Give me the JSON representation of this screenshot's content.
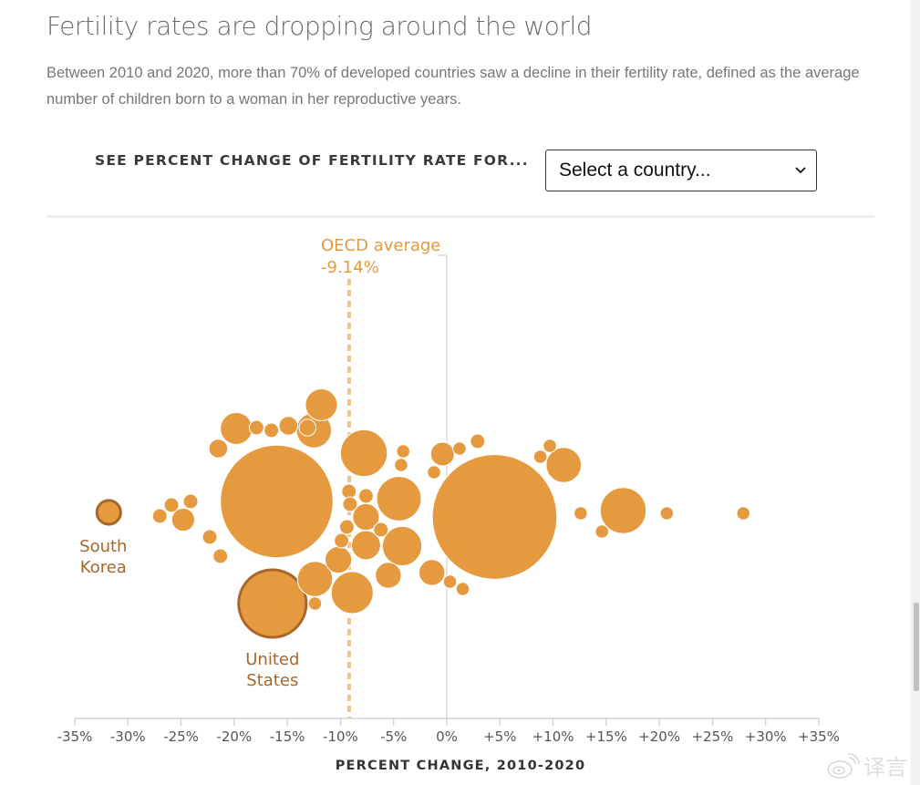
{
  "header": {
    "title": "Fertility rates are dropping around the world",
    "description": "Between 2010 and 2020, more than 70% of developed countries saw a decline in their fertility rate, defined as the average number of children born to a woman in her reproductive years."
  },
  "control": {
    "label": "SEE PERCENT CHANGE OF FERTILITY RATE FOR...",
    "select_value": "Select a country..."
  },
  "colors": {
    "bubble": "#e59a3f",
    "highlight_stroke": "#a9662a",
    "oecd_line": "#f2c38d",
    "axis": "#cccccc",
    "zero_line": "#c8c8c8"
  },
  "watermark": {
    "text": "译言"
  },
  "chart_data": {
    "type": "scatter",
    "subtype": "beeswarm-bubble",
    "title": "Fertility rates are dropping around the world",
    "xlabel": "PERCENT CHANGE, 2010-2020",
    "ylabel": "",
    "xlim": [
      -35,
      35
    ],
    "x_ticks": [
      "-35%",
      "-30%",
      "-25%",
      "-20%",
      "-15%",
      "-10%",
      "-5%",
      "0%",
      "+5%",
      "+10%",
      "+15%",
      "+20%",
      "+25%",
      "+30%",
      "+35%"
    ],
    "x_tick_values": [
      -35,
      -30,
      -25,
      -20,
      -15,
      -10,
      -5,
      0,
      5,
      10,
      15,
      20,
      25,
      30,
      35
    ],
    "grid": false,
    "reference_line": {
      "label": "OECD average",
      "value_label": "-9.14%",
      "value": -9.14
    },
    "highlighted": [
      {
        "label_lines": [
          "South",
          "Korea"
        ],
        "x": -31.8
      },
      {
        "label_lines": [
          "United",
          "States"
        ],
        "x": -16.4
      }
    ],
    "points": [
      {
        "x": -31.8,
        "size": 2.0,
        "dy": 0,
        "name": "South Korea",
        "highlight": true
      },
      {
        "x": -16.4,
        "size": 14.0,
        "dy": 100,
        "name": "United States",
        "highlight": true
      },
      {
        "x": -16.0,
        "size": 36.0,
        "dy": -12
      },
      {
        "x": 4.5,
        "size": 44.0,
        "dy": 5
      },
      {
        "x": -7.8,
        "size": 6.2,
        "dy": -65
      },
      {
        "x": -4.5,
        "size": 5.6,
        "dy": -15
      },
      {
        "x": -4.2,
        "size": 4.4,
        "dy": 37
      },
      {
        "x": -12.5,
        "size": 3.5,
        "dy": -90
      },
      {
        "x": -11.8,
        "size": 2.9,
        "dy": -118
      },
      {
        "x": -19.8,
        "size": 2.9,
        "dy": -92
      },
      {
        "x": 11.0,
        "size": 3.5,
        "dy": -52
      },
      {
        "x": 16.6,
        "size": 6.0,
        "dy": -2
      },
      {
        "x": -8.9,
        "size": 5.0,
        "dy": 88
      },
      {
        "x": -12.4,
        "size": 3.5,
        "dy": 73
      },
      {
        "x": -7.6,
        "size": 2.4,
        "dy": 36
      },
      {
        "x": -7.6,
        "size": 2.0,
        "dy": 5
      },
      {
        "x": -5.5,
        "size": 1.9,
        "dy": 69
      },
      {
        "x": -1.4,
        "size": 1.9,
        "dy": 66
      },
      {
        "x": -10.2,
        "size": 2.0,
        "dy": 52
      },
      {
        "x": -0.4,
        "size": 1.6,
        "dy": -64
      },
      {
        "x": -14.9,
        "size": 1.0,
        "dy": -95
      },
      {
        "x": -13.1,
        "size": 0.8,
        "dy": -93
      },
      {
        "x": -16.5,
        "size": 0.6,
        "dy": -90
      },
      {
        "x": -17.9,
        "size": 0.6,
        "dy": -93
      },
      {
        "x": -21.5,
        "size": 1.0,
        "dy": -70
      },
      {
        "x": -24.8,
        "size": 1.5,
        "dy": 8
      },
      {
        "x": -27.0,
        "size": 0.6,
        "dy": 4
      },
      {
        "x": -25.9,
        "size": 0.6,
        "dy": -8
      },
      {
        "x": -24.1,
        "size": 0.6,
        "dy": -12
      },
      {
        "x": -22.3,
        "size": 0.6,
        "dy": 27
      },
      {
        "x": -21.3,
        "size": 0.6,
        "dy": 48
      },
      {
        "x": -12.4,
        "size": 0.5,
        "dy": 100
      },
      {
        "x": -9.2,
        "size": 0.6,
        "dy": -23
      },
      {
        "x": -7.6,
        "size": 0.6,
        "dy": -18
      },
      {
        "x": -9.1,
        "size": 0.6,
        "dy": -9
      },
      {
        "x": -9.4,
        "size": 0.6,
        "dy": 16
      },
      {
        "x": -9.9,
        "size": 0.6,
        "dy": 31
      },
      {
        "x": -6.2,
        "size": 0.6,
        "dy": 19
      },
      {
        "x": -4.1,
        "size": 0.5,
        "dy": -67
      },
      {
        "x": -4.3,
        "size": 0.5,
        "dy": -52
      },
      {
        "x": -1.2,
        "size": 0.5,
        "dy": -44
      },
      {
        "x": 1.2,
        "size": 0.5,
        "dy": -70
      },
      {
        "x": 2.9,
        "size": 0.6,
        "dy": -78
      },
      {
        "x": 0.3,
        "size": 0.5,
        "dy": 76
      },
      {
        "x": 1.5,
        "size": 0.5,
        "dy": 84
      },
      {
        "x": 9.7,
        "size": 0.5,
        "dy": -73
      },
      {
        "x": 8.8,
        "size": 0.5,
        "dy": -61
      },
      {
        "x": 12.6,
        "size": 0.5,
        "dy": 1
      },
      {
        "x": 14.6,
        "size": 0.5,
        "dy": 21
      },
      {
        "x": 20.7,
        "size": 0.5,
        "dy": 1
      },
      {
        "x": 27.9,
        "size": 0.5,
        "dy": 1
      }
    ]
  }
}
